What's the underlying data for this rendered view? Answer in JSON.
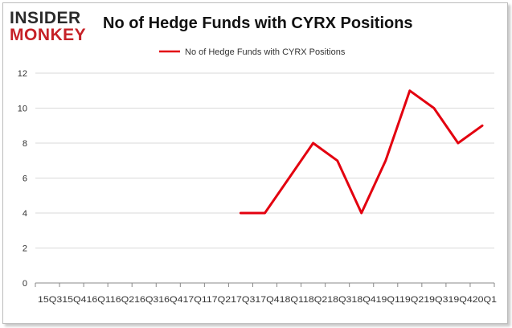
{
  "logo": {
    "line1": "INSIDER",
    "line2": "MONKEY"
  },
  "colors": {
    "series": "#e3000f",
    "axis": "#888888",
    "grid": "#d9d9d9",
    "logo_red": "#c62127"
  },
  "chart_data": {
    "type": "line",
    "title": "No of Hedge Funds with CYRX Positions",
    "xlabel": "",
    "ylabel": "",
    "legend_position": "top",
    "grid": true,
    "ylim": [
      0,
      12
    ],
    "yticks": [
      "0",
      "2",
      "4",
      "6",
      "8",
      "10",
      "12"
    ],
    "categories": [
      "2015Q3",
      "2015Q4",
      "2016Q1",
      "2016Q2",
      "2016Q3",
      "2016Q4",
      "2017Q1",
      "2017Q2",
      "2017Q3",
      "2017Q4",
      "2018Q1",
      "2018Q2",
      "2018Q3",
      "2018Q4",
      "2019Q1",
      "2019Q2",
      "2019Q3",
      "2019Q4",
      "2020Q1"
    ],
    "xtick_labels": [
      "15Q3",
      "15Q4",
      "16Q1",
      "16Q2",
      "16Q3",
      "16Q4",
      "17Q1",
      "17Q2",
      "17Q3",
      "17Q4",
      "18Q1",
      "18Q2",
      "18Q3",
      "18Q4",
      "19Q1",
      "19Q2",
      "19Q3",
      "19Q4",
      "20Q1"
    ],
    "series": [
      {
        "name": "No of Hedge Funds with CYRX Positions",
        "values": [
          null,
          null,
          null,
          null,
          null,
          null,
          null,
          null,
          4,
          4,
          6,
          8,
          7,
          4,
          7,
          11,
          10,
          8,
          9
        ]
      }
    ]
  }
}
